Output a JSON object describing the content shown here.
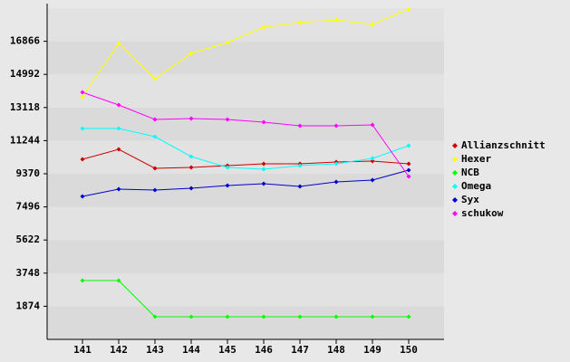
{
  "chart_data": {
    "type": "line",
    "categories": [
      "141",
      "142",
      "143",
      "144",
      "145",
      "146",
      "147",
      "148",
      "149",
      "150"
    ],
    "ylim": [
      0,
      18740
    ],
    "yticks": [
      1874,
      3748,
      5622,
      7496,
      9370,
      11244,
      13118,
      14992,
      16866
    ],
    "legend": "right",
    "series": [
      {
        "name": "Allianzschnitt",
        "color": "#cc0000",
        "values": [
          10189,
          10752,
          9677,
          9728,
          9831,
          9933,
          9933,
          10035,
          10087,
          9933
        ]
      },
      {
        "name": "Hexer",
        "color": "#ffff00",
        "values": [
          13722,
          16743,
          14746,
          16180,
          16794,
          17665,
          17921,
          18075,
          17819,
          18689
        ]
      },
      {
        "name": "NCB",
        "color": "#00ff00",
        "values": [
          3328,
          3328,
          1280,
          1280,
          1280,
          1280,
          1280,
          1280,
          1280,
          1280
        ]
      },
      {
        "name": "Omega",
        "color": "#00ffff",
        "values": [
          11930,
          11930,
          11469,
          10343,
          9728,
          9626,
          9831,
          9933,
          10240,
          10957
        ]
      },
      {
        "name": "Syx",
        "color": "#0000cc",
        "values": [
          8090,
          8500,
          8448,
          8551,
          8704,
          8807,
          8653,
          8909,
          9011,
          9575
        ]
      },
      {
        "name": "schukow",
        "color": "#ff00ff",
        "values": [
          13978,
          13261,
          12442,
          12493,
          12442,
          12288,
          12083,
          12083,
          12134,
          9216
        ]
      }
    ]
  }
}
